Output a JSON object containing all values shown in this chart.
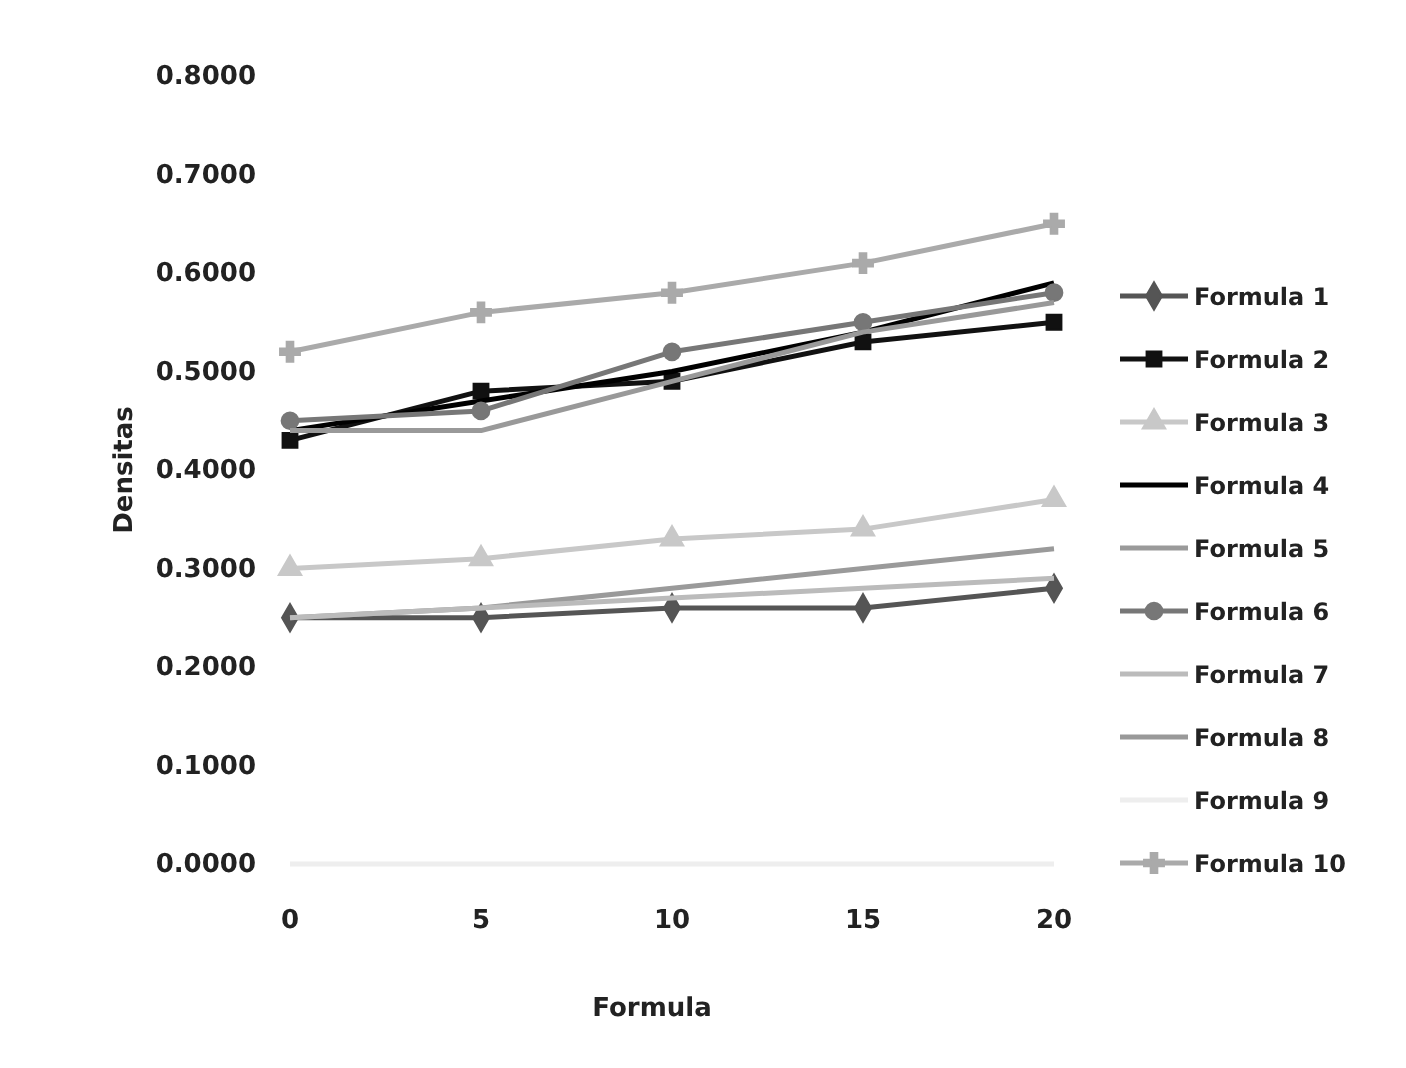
{
  "chart_data": {
    "type": "line",
    "xlabel": "Formula",
    "ylabel": "Densitas",
    "x": [
      0,
      5,
      10,
      15,
      20
    ],
    "xlim": [
      0,
      20
    ],
    "xticks": [
      0,
      5,
      10,
      15,
      20
    ],
    "ylim": [
      0,
      0.8
    ],
    "yticks": [
      {
        "value": 0,
        "label": "0.0000"
      },
      {
        "value": 0.1,
        "label": "0.1000"
      },
      {
        "value": 0.2,
        "label": "0.2000"
      },
      {
        "value": 0.3,
        "label": "0.3000"
      },
      {
        "value": 0.4,
        "label": "0.4000"
      },
      {
        "value": 0.5,
        "label": "0.5000"
      },
      {
        "value": 0.6,
        "label": "0.6000"
      },
      {
        "value": 0.7,
        "label": "0.7000"
      },
      {
        "value": 0.8,
        "label": "0.8000"
      }
    ],
    "grid": false,
    "legend": "right",
    "series": [
      {
        "name": "Formula 1",
        "color": "#555555",
        "marker": "diamond",
        "values": [
          0.25,
          0.25,
          0.26,
          0.26,
          0.28
        ]
      },
      {
        "name": "Formula 2",
        "color": "#111111",
        "marker": "square",
        "values": [
          0.43,
          0.48,
          0.49,
          0.53,
          0.55
        ]
      },
      {
        "name": "Formula 3",
        "color": "#c8c8c8",
        "marker": "triangle",
        "values": [
          0.3,
          0.31,
          0.33,
          0.34,
          0.37
        ]
      },
      {
        "name": "Formula 4",
        "color": "#000000",
        "marker": "none",
        "values": [
          0.44,
          0.47,
          0.5,
          0.54,
          0.59
        ]
      },
      {
        "name": "Formula 5",
        "color": "#9a9a9a",
        "marker": "none",
        "values": [
          0.25,
          0.26,
          0.28,
          0.3,
          0.32
        ]
      },
      {
        "name": "Formula 6",
        "color": "#777777",
        "marker": "circle",
        "values": [
          0.45,
          0.46,
          0.52,
          0.55,
          0.58
        ]
      },
      {
        "name": "Formula 7",
        "color": "#bbbbbb",
        "marker": "none",
        "values": [
          0.25,
          0.26,
          0.27,
          0.28,
          0.29
        ]
      },
      {
        "name": "Formula 8",
        "color": "#999999",
        "marker": "none",
        "values": [
          0.44,
          0.44,
          0.49,
          0.54,
          0.57
        ]
      },
      {
        "name": "Formula 9",
        "color": "#eeeeee",
        "marker": "none",
        "values": [
          0,
          0,
          0,
          0,
          0
        ]
      },
      {
        "name": "Formula 10",
        "color": "#aaaaaa",
        "marker": "cross",
        "values": [
          0.52,
          0.56,
          0.58,
          0.61,
          0.65
        ]
      }
    ]
  }
}
